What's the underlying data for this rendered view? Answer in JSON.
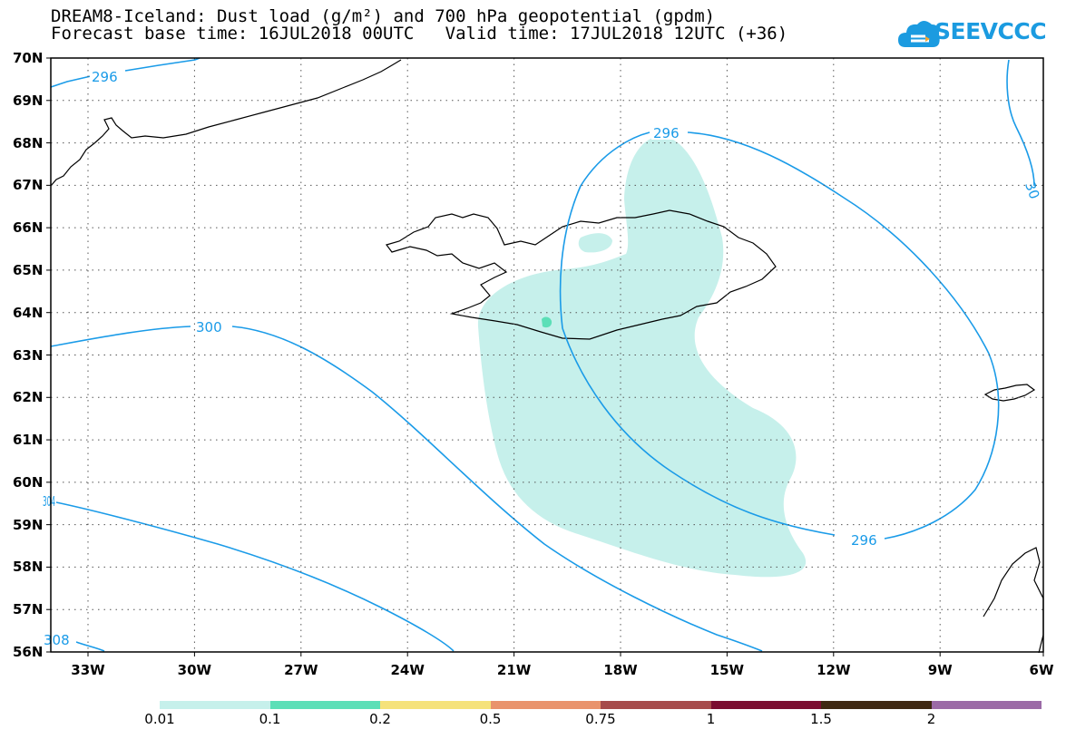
{
  "title": {
    "line1": "DREAM8-Iceland: Dust load (g/m²) and 700 hPa geopotential (gpdm)",
    "line2": "Forecast base time: 16JUL2018 00UTC   Valid time: 17JUL2018 12UTC (+36)"
  },
  "logo": {
    "text": "SEEVCCC",
    "icon": "cloud-icon"
  },
  "axes": {
    "latitudes": [
      "70N",
      "69N",
      "68N",
      "67N",
      "66N",
      "65N",
      "64N",
      "63N",
      "62N",
      "61N",
      "60N",
      "59N",
      "58N",
      "57N",
      "56N"
    ],
    "longitudes": [
      "33W",
      "30W",
      "27W",
      "24W",
      "21W",
      "18W",
      "15W",
      "12W",
      "9W",
      "6W"
    ]
  },
  "contours": {
    "color": "#1a9be8",
    "labels": [
      "296",
      "296",
      "296",
      "300",
      "304",
      "308",
      "30"
    ]
  },
  "dust": {
    "light_color": "#c6f0eb",
    "medium_color": "#5cdfb7"
  },
  "colorbar": {
    "colors": [
      "#c6f0eb",
      "#5cdfb7",
      "#f5e27a",
      "#e9936c",
      "#a64b4b",
      "#7b0d31",
      "#3f2812",
      "#9b6aa6"
    ],
    "labels": [
      "0.01",
      "0.1",
      "0.2",
      "0.5",
      "0.75",
      "1",
      "1.5",
      "2"
    ]
  }
}
